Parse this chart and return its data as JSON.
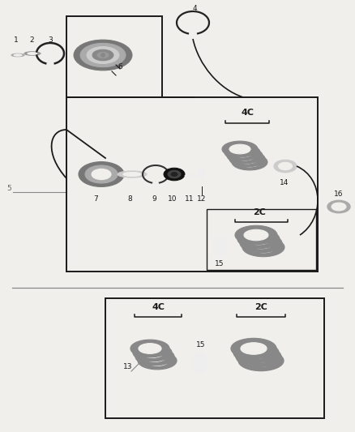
{
  "bg_color": "#f0efeb",
  "lc": "#1a1a1a",
  "gray1": "#888888",
  "gray2": "#aaaaaa",
  "gray3": "#cccccc",
  "gray_dark": "#555555",
  "white_ish": "#f0efeb",
  "labels_4C": "4C",
  "labels_2C": "2C",
  "figw": 4.38,
  "figh": 5.33,
  "dpi": 100
}
